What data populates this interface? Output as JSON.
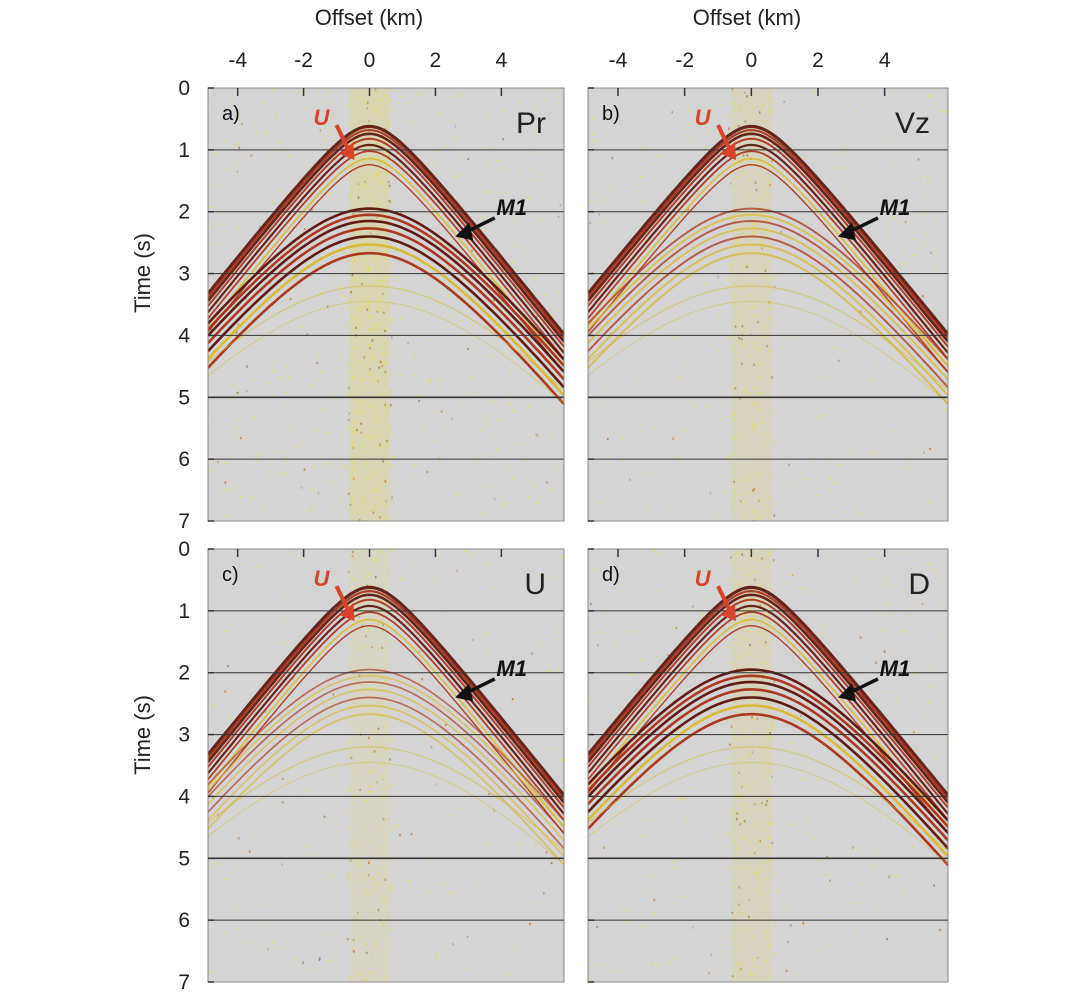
{
  "figure": {
    "top_x_axis_title": "Offset (km)",
    "y_axis_title": "Time (s)",
    "x_ticks": [
      "-4",
      "-2",
      "0",
      "2",
      "4"
    ],
    "x_tick_values": [
      -4,
      -2,
      0,
      2,
      4
    ],
    "y_ticks": [
      "0",
      "1",
      "2",
      "3",
      "4",
      "5",
      "6",
      "7"
    ],
    "y_tick_values": [
      0,
      1,
      2,
      3,
      4,
      5,
      6,
      7
    ],
    "x_range_km": [
      -4.9,
      5.9
    ],
    "time_range_s": [
      0,
      7
    ],
    "horizontal_grid_lines": true,
    "colors": {
      "background": "#d4d4d4",
      "noise": "#e6d84a",
      "event_dark": "#5a1208",
      "event_red": "#a83016",
      "event_yellow": "#d8b830",
      "u_arrow": "#d9432a",
      "m1_arrow": "#111111"
    },
    "events": {
      "U": {
        "apex_time_s": 0.62,
        "velocity_km_s": 1.5
      },
      "M1": {
        "apex_time_s": 1.95,
        "velocity_km_s": 1.5
      }
    }
  },
  "panels": [
    {
      "letter": "a)",
      "component": "Pr",
      "u_label": "U",
      "m1_label": "M1",
      "m1_strength": 1.0,
      "noise": 1.0
    },
    {
      "letter": "b)",
      "component": "Vz",
      "u_label": "U",
      "m1_label": "M1",
      "m1_strength": 0.55,
      "noise": 0.55
    },
    {
      "letter": "c)",
      "component": "U",
      "u_label": "U",
      "m1_label": "M1",
      "m1_strength": 0.35,
      "noise": 0.45
    },
    {
      "letter": "d)",
      "component": "D",
      "u_label": "U",
      "m1_label": "M1",
      "m1_strength": 1.0,
      "noise": 0.6
    }
  ]
}
